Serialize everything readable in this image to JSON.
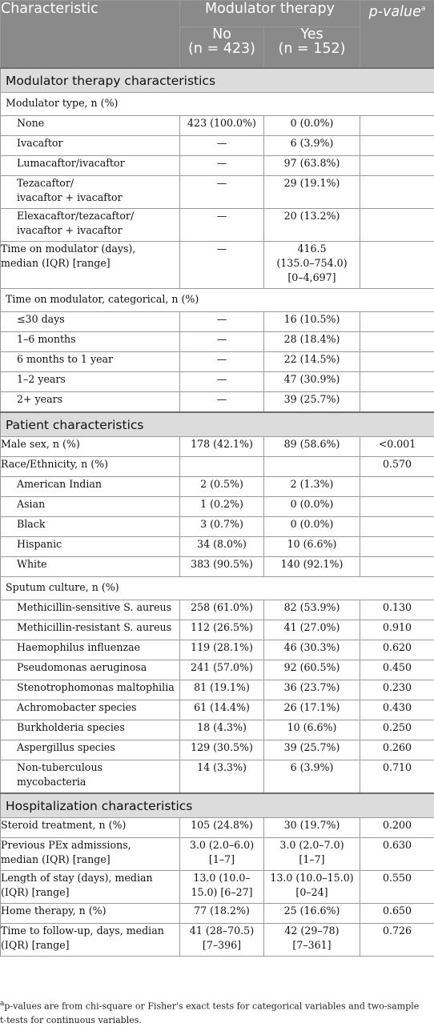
{
  "header": {
    "characteristic": "Characteristic",
    "modulator_therapy": "Modulator therapy",
    "p_value": "p-value",
    "p_value_sup": "a",
    "no_label": "No",
    "no_n": "(n = 423)",
    "yes_label": "Yes",
    "yes_n": "(n = 152)"
  },
  "sections": [
    {
      "title": "Modulator therapy characteristics",
      "rows": [
        {
          "kind": "group",
          "label": [
            "Modulator type, n (%)"
          ]
        },
        {
          "indent": true,
          "label": [
            "None"
          ],
          "no": [
            "423 (100.0%)"
          ],
          "yes": [
            "0 (0.0%)"
          ],
          "p": [
            ""
          ]
        },
        {
          "indent": true,
          "label": [
            "Ivacaftor"
          ],
          "no": [
            "—"
          ],
          "yes": [
            "6 (3.9%)"
          ],
          "p": [
            ""
          ]
        },
        {
          "indent": true,
          "label": [
            "Lumacaftor/ivacaftor"
          ],
          "no": [
            "—"
          ],
          "yes": [
            "97 (63.8%)"
          ],
          "p": [
            ""
          ]
        },
        {
          "indent": true,
          "label": [
            "Tezacaftor/",
            "ivacaftor + ivacaftor"
          ],
          "no": [
            "—"
          ],
          "yes": [
            "29 (19.1%)"
          ],
          "p": [
            ""
          ]
        },
        {
          "indent": true,
          "label": [
            "Elexacaftor/tezacaftor/",
            "ivacaftor + ivacaftor"
          ],
          "no": [
            "—"
          ],
          "yes": [
            "20 (13.2%)"
          ],
          "p": [
            ""
          ]
        },
        {
          "label": [
            "Time on modulator (days),",
            "median (IQR) [range]"
          ],
          "no": [
            "—"
          ],
          "yes": [
            "416.5",
            "(135.0–754.0)",
            "[0–4,697]"
          ],
          "p": [
            ""
          ]
        },
        {
          "kind": "group",
          "label": [
            "Time on modulator, categorical, n (%)"
          ]
        },
        {
          "indent": true,
          "label": [
            "≤30 days"
          ],
          "no": [
            "—"
          ],
          "yes": [
            "16 (10.5%)"
          ],
          "p": [
            ""
          ]
        },
        {
          "indent": true,
          "label": [
            "1–6 months"
          ],
          "no": [
            "—"
          ],
          "yes": [
            "28 (18.4%)"
          ],
          "p": [
            ""
          ]
        },
        {
          "indent": true,
          "label": [
            "6 months to 1 year"
          ],
          "no": [
            "—"
          ],
          "yes": [
            "22 (14.5%)"
          ],
          "p": [
            ""
          ]
        },
        {
          "indent": true,
          "label": [
            "1–2 years"
          ],
          "no": [
            "—"
          ],
          "yes": [
            "47 (30.9%)"
          ],
          "p": [
            ""
          ]
        },
        {
          "indent": true,
          "label": [
            "2+ years"
          ],
          "no": [
            "—"
          ],
          "yes": [
            "39 (25.7%)"
          ],
          "p": [
            ""
          ]
        }
      ]
    },
    {
      "title": "Patient characteristics",
      "rows": [
        {
          "label": [
            "Male sex, n (%)"
          ],
          "no": [
            "178 (42.1%)"
          ],
          "yes": [
            "89 (58.6%)"
          ],
          "p": [
            "<0.001"
          ]
        },
        {
          "label": [
            "Race/Ethnicity, n (%)"
          ],
          "no": [
            ""
          ],
          "yes": [
            ""
          ],
          "p": [
            "0.570"
          ]
        },
        {
          "indent": true,
          "label": [
            "American Indian"
          ],
          "no": [
            "2 (0.5%)"
          ],
          "yes": [
            "2 (1.3%)"
          ],
          "p": [
            ""
          ]
        },
        {
          "indent": true,
          "label": [
            "Asian"
          ],
          "no": [
            "1 (0.2%)"
          ],
          "yes": [
            "0 (0.0%)"
          ],
          "p": [
            ""
          ]
        },
        {
          "indent": true,
          "label": [
            "Black"
          ],
          "no": [
            "3 (0.7%)"
          ],
          "yes": [
            "0 (0.0%)"
          ],
          "p": [
            ""
          ]
        },
        {
          "indent": true,
          "label": [
            "Hispanic"
          ],
          "no": [
            "34 (8.0%)"
          ],
          "yes": [
            "10 (6.6%)"
          ],
          "p": [
            ""
          ]
        },
        {
          "indent": true,
          "label": [
            "White"
          ],
          "no": [
            "383 (90.5%)"
          ],
          "yes": [
            "140 (92.1%)"
          ],
          "p": [
            ""
          ]
        },
        {
          "kind": "group",
          "label": [
            "Sputum culture, n (%)"
          ]
        },
        {
          "indent": true,
          "label": [
            "Methicillin-sensitive S. aureus"
          ],
          "no": [
            "258 (61.0%)"
          ],
          "yes": [
            "82 (53.9%)"
          ],
          "p": [
            "0.130"
          ]
        },
        {
          "indent": true,
          "label": [
            "Methicillin-resistant S. aureus"
          ],
          "no": [
            "112 (26.5%)"
          ],
          "yes": [
            "41 (27.0%)"
          ],
          "p": [
            "0.910"
          ]
        },
        {
          "indent": true,
          "label": [
            "Haemophilus influenzae"
          ],
          "no": [
            "119 (28.1%)"
          ],
          "yes": [
            "46 (30.3%)"
          ],
          "p": [
            "0.620"
          ]
        },
        {
          "indent": true,
          "label": [
            "Pseudomonas aeruginosa"
          ],
          "no": [
            "241 (57.0%)"
          ],
          "yes": [
            "92 (60.5%)"
          ],
          "p": [
            "0.450"
          ]
        },
        {
          "indent": true,
          "label": [
            "Stenotrophomonas maltophilia"
          ],
          "no": [
            "81 (19.1%)"
          ],
          "yes": [
            "36 (23.7%)"
          ],
          "p": [
            "0.230"
          ]
        },
        {
          "indent": true,
          "label": [
            "Achromobacter species"
          ],
          "no": [
            "61 (14.4%)"
          ],
          "yes": [
            "26 (17.1%)"
          ],
          "p": [
            "0.430"
          ]
        },
        {
          "indent": true,
          "label": [
            "Burkholderia species"
          ],
          "no": [
            "18 (4.3%)"
          ],
          "yes": [
            "10 (6.6%)"
          ],
          "p": [
            "0.250"
          ]
        },
        {
          "indent": true,
          "label": [
            "Aspergillus species"
          ],
          "no": [
            "129 (30.5%)"
          ],
          "yes": [
            "39 (25.7%)"
          ],
          "p": [
            "0.260"
          ]
        },
        {
          "indent": true,
          "label": [
            "Non-tuberculous",
            "mycobacteria"
          ],
          "no": [
            "14 (3.3%)"
          ],
          "yes": [
            "6 (3.9%)"
          ],
          "p": [
            "0.710"
          ]
        }
      ]
    },
    {
      "title": "Hospitalization characteristics",
      "rows": [
        {
          "label": [
            "Steroid treatment, n (%)"
          ],
          "no": [
            "105 (24.8%)"
          ],
          "yes": [
            "30 (19.7%)"
          ],
          "p": [
            "0.200"
          ]
        },
        {
          "label": [
            "Previous PEx admissions,",
            "median (IQR) [range]"
          ],
          "no": [
            "3.0 (2.0–6.0)",
            "[1–7]"
          ],
          "yes": [
            "3.0 (2.0–7.0)",
            "[1–7]"
          ],
          "p": [
            "0.630"
          ]
        },
        {
          "label": [
            "Length of stay (days), median",
            "(IQR) [range]"
          ],
          "no": [
            "13.0 (10.0–",
            "15.0) [6–27]"
          ],
          "yes": [
            "13.0 (10.0–15.0)",
            "[0–24]"
          ],
          "p": [
            "0.550"
          ]
        },
        {
          "label": [
            "Home therapy, n (%)"
          ],
          "no": [
            "77 (18.2%)"
          ],
          "yes": [
            "25 (16.6%)"
          ],
          "p": [
            "0.650"
          ]
        },
        {
          "label": [
            "Time to follow-up, days, median",
            "(IQR) [range]"
          ],
          "no": [
            "41 (28–70.5)",
            "[7–396]"
          ],
          "yes": [
            "42 (29–78)",
            "[7–361]"
          ],
          "p": [
            "0.726"
          ]
        }
      ]
    }
  ],
  "footnote": {
    "mark": "a",
    "line1": "p-values are from chi-square or Fisher's exact tests for categorical variables and two-sample",
    "line2": "t-tests for continuous variables."
  }
}
